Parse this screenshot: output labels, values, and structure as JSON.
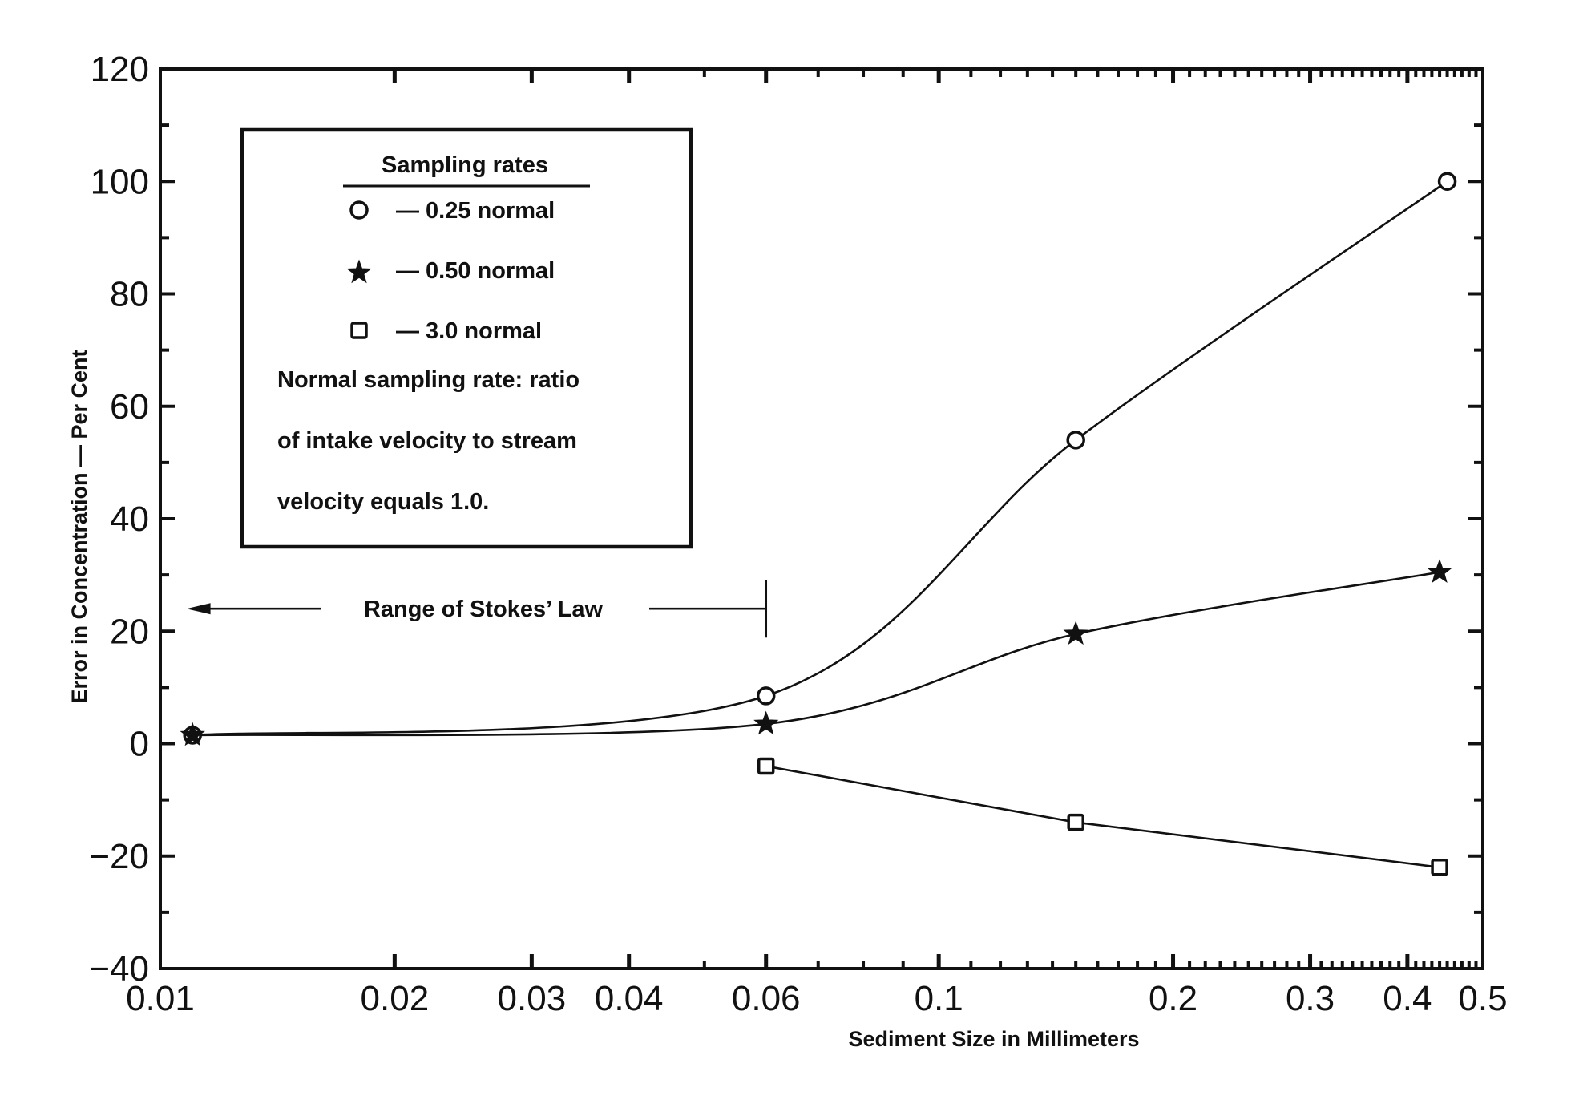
{
  "chart_data": {
    "type": "line",
    "xlabel": "Sediment Size in Millimeters",
    "ylabel": "Error in Concentration — Per Cent",
    "x_scale": "log",
    "xlim": [
      0.01,
      0.5
    ],
    "ylim": [
      -40,
      120
    ],
    "x_ticks": [
      0.01,
      0.02,
      0.03,
      0.04,
      0.06,
      0.1,
      0.2,
      0.3,
      0.4,
      0.5
    ],
    "x_tick_labels": [
      "0.01",
      "0.02",
      "0.03",
      "0.04",
      "0.06",
      "0.1",
      "0.2",
      "0.3",
      "0.4",
      "0.5"
    ],
    "y_ticks": [
      -40,
      -20,
      0,
      20,
      40,
      60,
      80,
      100,
      120
    ],
    "y_tick_labels": [
      "−40",
      "−20",
      "0",
      "20",
      "40",
      "60",
      "80",
      "100",
      "120"
    ],
    "grid": false,
    "legend_placement": "top-left",
    "legend": {
      "heading": "Sampling rates",
      "entries": [
        "— 0.25 normal",
        "— 0.50 normal",
        "— 3.0 normal"
      ],
      "note_lines": [
        "Normal sampling rate: ratio",
        "of intake velocity to stream",
        "velocity equals 1.0."
      ]
    },
    "annotation": {
      "text": "Range of Stokes’ Law",
      "x_from": 0.0105,
      "x_to": 0.06,
      "y": 25
    },
    "series": [
      {
        "marker": "circle",
        "points": [
          {
            "x": 0.011,
            "y": 1.5
          },
          {
            "x": 0.06,
            "y": 8.5
          },
          {
            "x": 0.15,
            "y": 54
          },
          {
            "x": 0.45,
            "y": 100
          }
        ]
      },
      {
        "marker": "star",
        "points": [
          {
            "x": 0.011,
            "y": 1.5
          },
          {
            "x": 0.06,
            "y": 3.5
          },
          {
            "x": 0.15,
            "y": 19.5
          },
          {
            "x": 0.44,
            "y": 30.5
          }
        ]
      },
      {
        "marker": "square",
        "points": [
          {
            "x": 0.06,
            "y": -4
          },
          {
            "x": 0.15,
            "y": -14
          },
          {
            "x": 0.44,
            "y": -22
          }
        ]
      }
    ]
  }
}
